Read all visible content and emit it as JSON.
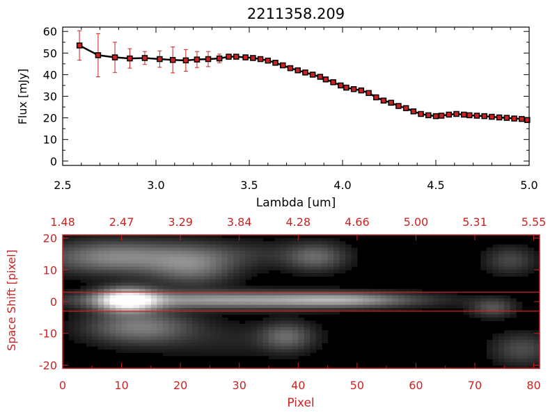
{
  "chart_data": [
    {
      "type": "line",
      "title": "2211358.209",
      "xlabel": "Lambda [um]",
      "ylabel": "Flux [mJy]",
      "xlim": [
        2.5,
        5.0
      ],
      "ylim": [
        -2,
        62
      ],
      "xticks": [
        "2.5",
        "3.0",
        "3.5",
        "4.0",
        "4.5",
        "5.0"
      ],
      "yticks": [
        "0",
        "10",
        "20",
        "30",
        "40",
        "50",
        "60"
      ],
      "marker": "square",
      "line_color": "#000000",
      "marker_color": "#cc2222",
      "errorbar_color": "#cc2222",
      "x": [
        2.59,
        2.69,
        2.78,
        2.86,
        2.94,
        3.02,
        3.09,
        3.16,
        3.22,
        3.28,
        3.34,
        3.39,
        3.43,
        3.48,
        3.52,
        3.56,
        3.6,
        3.64,
        3.68,
        3.72,
        3.76,
        3.8,
        3.84,
        3.88,
        3.91,
        3.95,
        3.99,
        4.02,
        4.06,
        4.1,
        4.14,
        4.18,
        4.22,
        4.26,
        4.3,
        4.34,
        4.38,
        4.42,
        4.46,
        4.5,
        4.53,
        4.57,
        4.61,
        4.65,
        4.68,
        4.72,
        4.76,
        4.8,
        4.84,
        4.88,
        4.92,
        4.96,
        4.99
      ],
      "y": [
        53.5,
        49.0,
        48.0,
        47.5,
        47.7,
        47.2,
        46.8,
        46.6,
        47.0,
        47.2,
        47.5,
        48.3,
        48.3,
        48.0,
        47.7,
        47.2,
        46.5,
        45.5,
        44.3,
        43.0,
        42.0,
        41.0,
        40.0,
        39.0,
        37.8,
        36.5,
        35.0,
        34.0,
        33.3,
        32.7,
        31.5,
        29.5,
        28.0,
        27.0,
        25.5,
        24.5,
        23.0,
        21.8,
        21.2,
        20.8,
        21.0,
        21.5,
        21.8,
        21.5,
        21.2,
        21.0,
        20.8,
        20.5,
        20.2,
        20.0,
        19.7,
        19.5,
        19.0
      ],
      "yerr": [
        6.8,
        10.0,
        7.0,
        4.5,
        3.0,
        3.8,
        6.0,
        5.0,
        3.7,
        3.5,
        2.0,
        1.2,
        1.0,
        0.9,
        0.9,
        0.8,
        0.8,
        0.8,
        0.8,
        0.8,
        0.8,
        0.8,
        0.8,
        0.8,
        0.8,
        0.8,
        0.8,
        0.8,
        0.8,
        0.8,
        0.8,
        0.8,
        0.8,
        0.8,
        0.8,
        0.8,
        0.8,
        0.8,
        0.8,
        0.8,
        0.8,
        0.8,
        0.8,
        0.8,
        0.8,
        0.8,
        0.8,
        0.8,
        0.8,
        0.8,
        0.8,
        0.8,
        0.8
      ]
    },
    {
      "type": "heatmap",
      "xlabel": "Pixel",
      "ylabel": "Space Shift [pixel]",
      "xlim": [
        0,
        81
      ],
      "ylim": [
        -21,
        21
      ],
      "xticks": [
        "0",
        "10",
        "20",
        "30",
        "40",
        "50",
        "60",
        "70",
        "80"
      ],
      "yticks": [
        "-20",
        "-10",
        "0",
        "10",
        "20"
      ],
      "top_axis_labels": [
        "1.48",
        "2.47",
        "3.29",
        "3.84",
        "4.28",
        "4.66",
        "5.00",
        "5.31",
        "5.55"
      ],
      "colormap": "grayscale",
      "frame_color": "#cc2222",
      "extraction_window": [
        -3,
        3
      ],
      "blobs": [
        {
          "x": 11,
          "y": 0.5,
          "sx": 3.5,
          "sy": 2.5,
          "v": 1.0
        },
        {
          "x": 30,
          "y": 0.5,
          "sx": 18,
          "sy": 1.8,
          "v": 0.55
        },
        {
          "x": 48,
          "y": 0.5,
          "sx": 7,
          "sy": 1.5,
          "v": 0.3
        },
        {
          "x": 9,
          "y": 14,
          "sx": 8,
          "sy": 3.5,
          "v": 0.45
        },
        {
          "x": 22,
          "y": 11,
          "sx": 5,
          "sy": 4,
          "v": 0.35
        },
        {
          "x": 43,
          "y": 14,
          "sx": 3.5,
          "sy": 3,
          "v": 0.3
        },
        {
          "x": 13,
          "y": -8,
          "sx": 6,
          "sy": 3.5,
          "v": 0.4
        },
        {
          "x": 38,
          "y": -11,
          "sx": 3,
          "sy": 3,
          "v": 0.3
        },
        {
          "x": 73,
          "y": -2,
          "sx": 2.5,
          "sy": 2,
          "v": 0.25
        },
        {
          "x": 76,
          "y": 13,
          "sx": 3,
          "sy": 3,
          "v": 0.2
        },
        {
          "x": 78,
          "y": -15,
          "sx": 3.5,
          "sy": 3.5,
          "v": 0.22
        },
        {
          "x": 30,
          "y": 15,
          "sx": 9,
          "sy": 3,
          "v": 0.12
        },
        {
          "x": 28,
          "y": -12,
          "sx": 10,
          "sy": 4,
          "v": 0.08
        }
      ]
    }
  ]
}
